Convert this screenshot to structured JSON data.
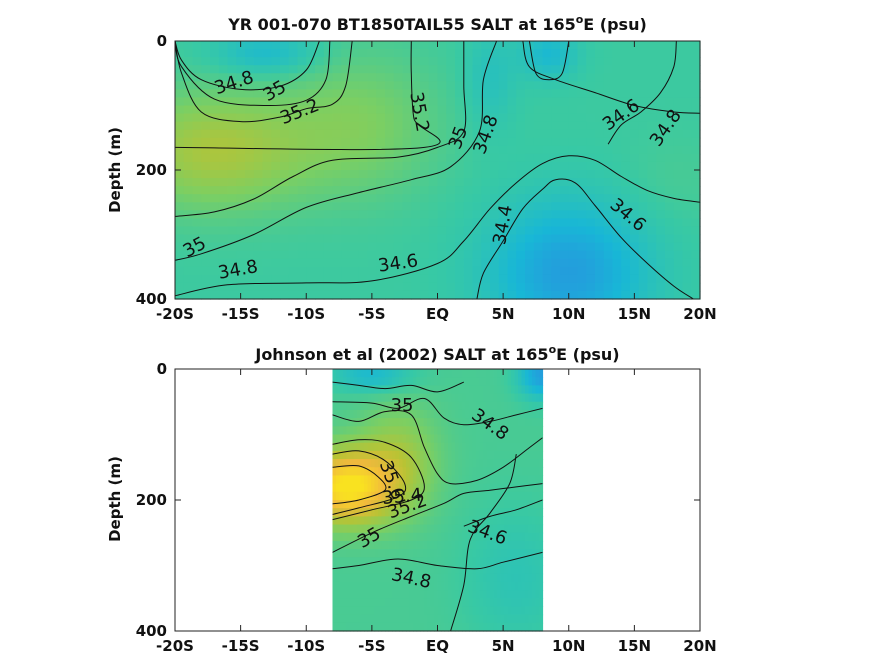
{
  "chart_data": [
    {
      "type": "heatmap",
      "title_prefix": "YR 001-070 BT1850TAIL55 SALT at 165",
      "title_sup": "o",
      "title_suffix": "E (psu)",
      "ylabel": "Depth (m)",
      "xlabel": "",
      "xlim": [
        -20,
        20
      ],
      "ylim": [
        0,
        400
      ],
      "y_reversed": true,
      "x_ticks": [
        -20,
        -15,
        -10,
        -5,
        0,
        5,
        10,
        15,
        20
      ],
      "x_tick_labels": [
        "-20S",
        "-15S",
        "-10S",
        "-5S",
        "EQ",
        "5N",
        "10N",
        "15N",
        "20N"
      ],
      "y_ticks": [
        0,
        200,
        400
      ],
      "y_tick_labels": [
        "0",
        "200",
        "400"
      ],
      "color_scale": {
        "min": 34.2,
        "max": 35.8,
        "stops": [
          "#2a8fe0",
          "#18b7d6",
          "#38c9a4",
          "#7ccf62",
          "#b8c334",
          "#f1b93d",
          "#f9e220"
        ]
      },
      "grid": false,
      "data_extent": [
        -20,
        20
      ],
      "contours": [
        {
          "level": "34.8",
          "points": [
            [
              -20,
              0
            ],
            [
              -19.5,
              30
            ],
            [
              -18,
              60
            ],
            [
              -15,
              75
            ],
            [
              -12,
              70
            ],
            [
              -10,
              45
            ],
            [
              -9,
              0
            ]
          ]
        },
        {
          "level": "35",
          "points": [
            [
              -20,
              0
            ],
            [
              -19.5,
              40
            ],
            [
              -17,
              90
            ],
            [
              -13,
              100
            ],
            [
              -10,
              92
            ],
            [
              -8.5,
              60
            ],
            [
              -8.2,
              0
            ]
          ]
        },
        {
          "level": "35.2",
          "points": [
            [
              -20,
              0
            ],
            [
              -19.5,
              50
            ],
            [
              -18,
              110
            ],
            [
              -15,
              125
            ],
            [
              -12,
              118
            ],
            [
              -10,
              105
            ],
            [
              -8,
              98
            ],
            [
              -7,
              70
            ],
            [
              -6.5,
              0
            ]
          ]
        },
        {
          "level": "35.2",
          "points": [
            [
              -2,
              0
            ],
            [
              -2,
              50
            ],
            [
              -1.8,
              120
            ],
            [
              -1,
              165
            ],
            [
              -20,
              165
            ]
          ]
        },
        {
          "level": "35",
          "points": [
            [
              2,
              0
            ],
            [
              2,
              70
            ],
            [
              2,
              140
            ],
            [
              0,
              165
            ],
            [
              -3,
              180
            ],
            [
              -8,
              185
            ],
            [
              -11,
              210
            ],
            [
              -14,
              245
            ],
            [
              -17,
              265
            ],
            [
              -20,
              272
            ]
          ]
        },
        {
          "level": "34.8",
          "points": [
            [
              4.5,
              0
            ],
            [
              3.5,
              60
            ],
            [
              3.2,
              140
            ],
            [
              1,
              195
            ],
            [
              -2,
              215
            ],
            [
              -6,
              235
            ],
            [
              -10,
              258
            ],
            [
              -14,
              300
            ],
            [
              -18,
              330
            ],
            [
              -20,
              340
            ]
          ]
        },
        {
          "level": "34.6",
          "points": [
            [
              -20,
              395
            ],
            [
              -16,
              378
            ],
            [
              -10,
              375
            ],
            [
              -5,
              372
            ],
            [
              0,
              345
            ],
            [
              2,
              310
            ],
            [
              4,
              260
            ],
            [
              6,
              220
            ],
            [
              8,
              190
            ],
            [
              10,
              178
            ],
            [
              12,
              185
            ],
            [
              14,
              210
            ],
            [
              16,
              232
            ],
            [
              18,
              244
            ],
            [
              20,
              250
            ]
          ]
        },
        {
          "level": "34.4",
          "points": [
            [
              3,
              400
            ],
            [
              3.5,
              360
            ],
            [
              5,
              310
            ],
            [
              6.5,
              260
            ],
            [
              8,
              230
            ],
            [
              9,
              215
            ],
            [
              10.5,
              220
            ],
            [
              12,
              255
            ],
            [
              14,
              305
            ],
            [
              16,
              345
            ],
            [
              18,
              380
            ],
            [
              19.5,
              400
            ]
          ]
        },
        {
          "level": "34.6",
          "points": [
            [
              6.5,
              0
            ],
            [
              7,
              40
            ],
            [
              9,
              60
            ],
            [
              12,
              80
            ],
            [
              15,
              100
            ],
            [
              18,
              110
            ],
            [
              20,
              112
            ]
          ]
        },
        {
          "level": "34.8",
          "points": [
            [
              13,
              160
            ],
            [
              14,
              130
            ],
            [
              15.5,
              110
            ],
            [
              17,
              80
            ],
            [
              18,
              40
            ],
            [
              18.2,
              0
            ]
          ]
        },
        {
          "level": "34.6",
          "points": [
            [
              7,
              0
            ],
            [
              7.5,
              50
            ],
            [
              8.5,
              60
            ],
            [
              9.5,
              50
            ],
            [
              10,
              0
            ]
          ]
        }
      ],
      "contour_labels": [
        {
          "text": "34.8",
          "x": -15.5,
          "y": 65,
          "angle": -18
        },
        {
          "text": "35",
          "x": -12.4,
          "y": 78,
          "angle": -30
        },
        {
          "text": "35.2",
          "x": -10.5,
          "y": 110,
          "angle": -22
        },
        {
          "text": "35.2",
          "x": -1.4,
          "y": 110,
          "angle": 80
        },
        {
          "text": "35",
          "x": 1.6,
          "y": 150,
          "angle": -70
        },
        {
          "text": "34.8",
          "x": 3.7,
          "y": 145,
          "angle": -70
        },
        {
          "text": "34.6",
          "x": 14,
          "y": 115,
          "angle": -35
        },
        {
          "text": "34.8",
          "x": 17.4,
          "y": 135,
          "angle": -55
        },
        {
          "text": "34.6",
          "x": 14.5,
          "y": 270,
          "angle": 40
        },
        {
          "text": "34.4",
          "x": 5,
          "y": 285,
          "angle": -80
        },
        {
          "text": "34.6",
          "x": -3,
          "y": 345,
          "angle": -8
        },
        {
          "text": "34.8",
          "x": -15.2,
          "y": 355,
          "angle": -10
        },
        {
          "text": "35",
          "x": -18.5,
          "y": 320,
          "angle": -28
        }
      ]
    },
    {
      "type": "heatmap",
      "title_prefix": "Johnson et al (2002) SALT at 165",
      "title_sup": "o",
      "title_suffix": "E (psu)",
      "ylabel": "Depth (m)",
      "xlabel": "",
      "xlim": [
        -20,
        20
      ],
      "ylim": [
        0,
        400
      ],
      "y_reversed": true,
      "x_ticks": [
        -20,
        -15,
        -10,
        -5,
        0,
        5,
        10,
        15,
        20
      ],
      "x_tick_labels": [
        "-20S",
        "-15S",
        "-10S",
        "-5S",
        "EQ",
        "5N",
        "10N",
        "15N",
        "20N"
      ],
      "y_ticks": [
        0,
        200,
        400
      ],
      "y_tick_labels": [
        "0",
        "200",
        "400"
      ],
      "color_scale": {
        "min": 34.2,
        "max": 35.8,
        "stops": [
          "#2a8fe0",
          "#18b7d6",
          "#38c9a4",
          "#7ccf62",
          "#b8c334",
          "#f1b93d",
          "#f9e220"
        ]
      },
      "grid": false,
      "data_extent": [
        -8,
        8
      ],
      "contours": [
        {
          "level": "35",
          "points": [
            [
              -8,
              20
            ],
            [
              -6,
              25
            ],
            [
              -4,
              30
            ],
            [
              -2,
              25
            ],
            [
              0,
              35
            ],
            [
              2,
              20
            ]
          ]
        },
        {
          "level": "35",
          "points": [
            [
              -8,
              50
            ],
            [
              -5,
              52
            ],
            [
              -3,
              60
            ],
            [
              -1,
              45
            ],
            [
              0.5,
              75
            ],
            [
              2,
              85
            ],
            [
              4,
              80
            ],
            [
              6,
              70
            ],
            [
              8,
              60
            ]
          ]
        },
        {
          "level": "35",
          "points": [
            [
              -8,
              70
            ],
            [
              -6,
              80
            ],
            [
              -4,
              65
            ],
            [
              -2,
              70
            ],
            [
              -1,
              120
            ],
            [
              0,
              160
            ],
            [
              1,
              175
            ],
            [
              3,
              170
            ],
            [
              5,
              150
            ],
            [
              7,
              120
            ],
            [
              8,
              105
            ]
          ]
        },
        {
          "level": "35.2",
          "points": [
            [
              -8,
              115
            ],
            [
              -6,
              108
            ],
            [
              -4,
              112
            ],
            [
              -2,
              135
            ],
            [
              -1,
              180
            ],
            [
              -2,
              200
            ],
            [
              -5,
              215
            ],
            [
              -8,
              230
            ]
          ]
        },
        {
          "level": "35.4",
          "points": [
            [
              -8,
              130
            ],
            [
              -6,
              125
            ],
            [
              -4,
              140
            ],
            [
              -2.5,
              175
            ],
            [
              -3,
              195
            ],
            [
              -6,
              212
            ],
            [
              -8,
              222
            ]
          ]
        },
        {
          "level": "35.6",
          "points": [
            [
              -8,
              150
            ],
            [
              -6,
              148
            ],
            [
              -4.5,
              165
            ],
            [
              -4,
              185
            ],
            [
              -6,
              200
            ],
            [
              -8,
              206
            ]
          ]
        },
        {
          "level": "35",
          "points": [
            [
              -8,
              280
            ],
            [
              -5,
              250
            ],
            [
              -2,
              225
            ],
            [
              0.5,
              205
            ],
            [
              2,
              190
            ],
            [
              4,
              185
            ],
            [
              6,
              180
            ],
            [
              8,
              175
            ]
          ]
        },
        {
          "level": "34.8",
          "points": [
            [
              -8,
              305
            ],
            [
              -6,
              300
            ],
            [
              -3,
              290
            ],
            [
              0,
              300
            ],
            [
              3,
              305
            ],
            [
              5,
              295
            ],
            [
              8,
              280
            ]
          ]
        },
        {
          "level": "34.6",
          "points": [
            [
              2,
              240
            ],
            [
              4,
              225
            ],
            [
              6,
              215
            ],
            [
              8,
              200
            ]
          ]
        },
        {
          "level": "34.4",
          "points": [
            [
              1,
              400
            ],
            [
              2,
              330
            ],
            [
              2.5,
              260
            ],
            [
              4,
              220
            ],
            [
              5.5,
              175
            ],
            [
              6,
              130
            ]
          ]
        }
      ],
      "contour_labels": [
        {
          "text": "35",
          "x": -2.7,
          "y": 56,
          "angle": 0
        },
        {
          "text": "34.8",
          "x": 4,
          "y": 85,
          "angle": 35
        },
        {
          "text": "35.6",
          "x": -3.5,
          "y": 170,
          "angle": 70
        },
        {
          "text": "35.4",
          "x": -2.7,
          "y": 195,
          "angle": -5
        },
        {
          "text": "35.2",
          "x": -2.3,
          "y": 210,
          "angle": -20
        },
        {
          "text": "35",
          "x": -5.2,
          "y": 258,
          "angle": -30
        },
        {
          "text": "34.6",
          "x": 3.8,
          "y": 250,
          "angle": 20
        },
        {
          "text": "34.8",
          "x": -2,
          "y": 320,
          "angle": 12
        }
      ]
    }
  ]
}
